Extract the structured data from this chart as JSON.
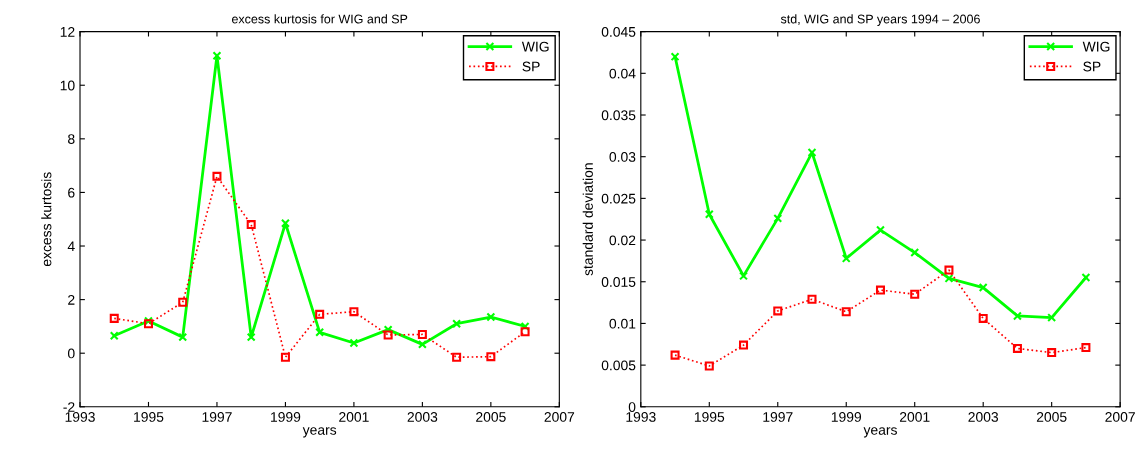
{
  "chart_data": [
    {
      "type": "line",
      "title": "excess kurtosis for WIG and SP",
      "xlabel": "years",
      "ylabel": "excess kurtosis",
      "x": [
        1994,
        1995,
        1996,
        1997,
        1998,
        1999,
        2000,
        2001,
        2002,
        2003,
        2004,
        2005,
        2006
      ],
      "series": [
        {
          "name": "WIG",
          "color": "#00ff00",
          "marker": "cross",
          "line_style": "solid",
          "values": [
            0.65,
            1.2,
            0.6,
            11.1,
            0.6,
            4.85,
            0.78,
            0.38,
            0.88,
            0.33,
            1.1,
            1.35,
            1.0
          ]
        },
        {
          "name": "SP",
          "color": "#ff0000",
          "marker": "square",
          "line_style": "dotted",
          "values": [
            1.3,
            1.1,
            1.9,
            6.6,
            4.8,
            -0.15,
            1.45,
            1.55,
            0.68,
            0.7,
            -0.15,
            -0.13,
            0.8
          ]
        }
      ],
      "xlim": [
        1993,
        2007
      ],
      "xticks": [
        1993,
        1995,
        1997,
        1999,
        2001,
        2003,
        2005,
        2007
      ],
      "ylim": [
        -2,
        12
      ],
      "yticks": [
        -2,
        0,
        2,
        4,
        6,
        8,
        10,
        12
      ],
      "grid": false,
      "legend": "top right"
    },
    {
      "type": "line",
      "title": "std, WIG and SP years 1994 – 2006",
      "xlabel": "years",
      "ylabel": "standard deviation",
      "x": [
        1994,
        1995,
        1996,
        1997,
        1998,
        1999,
        2000,
        2001,
        2002,
        2003,
        2004,
        2005,
        2006
      ],
      "series": [
        {
          "name": "WIG",
          "color": "#00ff00",
          "marker": "cross",
          "line_style": "solid",
          "values": [
            0.042,
            0.0231,
            0.0157,
            0.0226,
            0.0305,
            0.0178,
            0.0212,
            0.0185,
            0.0154,
            0.0143,
            0.0109,
            0.0107,
            0.0155
          ]
        },
        {
          "name": "SP",
          "color": "#ff0000",
          "marker": "square",
          "line_style": "dotted",
          "values": [
            0.0062,
            0.0049,
            0.0074,
            0.0115,
            0.0129,
            0.0114,
            0.014,
            0.0135,
            0.0164,
            0.0106,
            0.007,
            0.0065,
            0.0071
          ]
        }
      ],
      "xlim": [
        1993,
        2007
      ],
      "xticks": [
        1993,
        1995,
        1997,
        1999,
        2001,
        2003,
        2005,
        2007
      ],
      "ylim": [
        0,
        0.045
      ],
      "yticks": [
        0,
        0.005,
        0.01,
        0.015,
        0.02,
        0.025,
        0.03,
        0.035,
        0.04,
        0.045
      ],
      "grid": false,
      "legend": "top right"
    }
  ]
}
